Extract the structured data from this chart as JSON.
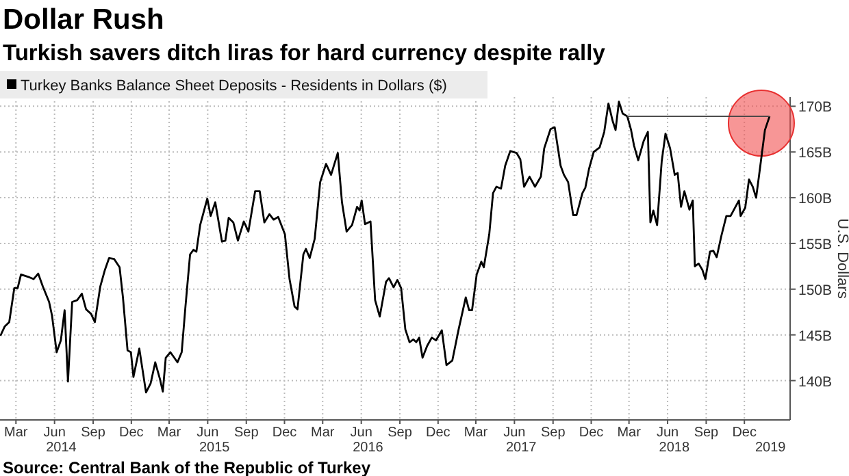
{
  "chart_data": {
    "type": "line",
    "title": "Dollar Rush",
    "subtitle": "Turkish savers ditch liras for hard currency despite rally",
    "ylabel": "U.S. Dollars",
    "annotations": [
      "Source: Central Bank of the Republic of Turkey"
    ],
    "legend": "top left",
    "grid": true,
    "marker": "none",
    "line_style": "solid",
    "xlim": [
      "2014-02-05",
      "2019-04-03"
    ],
    "xticks": [
      {
        "value": "2014-03-15",
        "label": "Mar"
      },
      {
        "value": "2014-06-15",
        "label": "Jun"
      },
      {
        "value": "2014-09-15",
        "label": "Sep"
      },
      {
        "value": "2014-12-15",
        "label": "Dec"
      },
      {
        "value": "2015-03-15",
        "label": "Mar"
      },
      {
        "value": "2015-06-15",
        "label": "Jun"
      },
      {
        "value": "2015-09-15",
        "label": "Sep"
      },
      {
        "value": "2015-12-15",
        "label": "Dec"
      },
      {
        "value": "2016-03-15",
        "label": "Mar"
      },
      {
        "value": "2016-06-15",
        "label": "Jun"
      },
      {
        "value": "2016-09-15",
        "label": "Sep"
      },
      {
        "value": "2016-12-15",
        "label": "Dec"
      },
      {
        "value": "2017-03-15",
        "label": "Mar"
      },
      {
        "value": "2017-06-15",
        "label": "Jun"
      },
      {
        "value": "2017-09-15",
        "label": "Sep"
      },
      {
        "value": "2017-12-15",
        "label": "Dec"
      },
      {
        "value": "2018-03-15",
        "label": "Mar"
      },
      {
        "value": "2018-06-15",
        "label": "Jun"
      },
      {
        "value": "2018-09-15",
        "label": "Sep"
      },
      {
        "value": "2018-12-15",
        "label": "Dec"
      }
    ],
    "x2lim": [
      "2014-02-05",
      "2019-04-03"
    ],
    "x2ticks": [
      {
        "value": "2014-07-01",
        "label": "2014"
      },
      {
        "value": "2015-07-01",
        "label": "2015"
      },
      {
        "value": "2016-07-01",
        "label": "2016"
      },
      {
        "value": "2017-07-01",
        "label": "2017"
      },
      {
        "value": "2018-07-01",
        "label": "2018"
      },
      {
        "value": "2019-02-15",
        "label": "2019"
      }
    ],
    "ylim": [
      135.7,
      171
    ],
    "yticks": [
      {
        "value": 140,
        "label": "140B"
      },
      {
        "value": 145,
        "label": "145B"
      },
      {
        "value": 150,
        "label": "150B"
      },
      {
        "value": 155,
        "label": "155B"
      },
      {
        "value": 160,
        "label": "160B"
      },
      {
        "value": 165,
        "label": "165B"
      },
      {
        "value": 170,
        "label": "170B"
      }
    ],
    "series": [
      {
        "name": "Turkey Banks Balance Sheet Deposits - Residents in Dollars ($)",
        "color": "#000000",
        "x": [
          "2014-02-06",
          "2014-02-16",
          "2014-02-27",
          "2014-03-11",
          "2014-03-19",
          "2014-03-27",
          "2014-04-16",
          "2014-04-26",
          "2014-05-07",
          "2014-05-18",
          "2014-06-02",
          "2014-06-09",
          "2014-06-20",
          "2014-06-30",
          "2014-07-09",
          "2014-07-17",
          "2014-07-27",
          "2014-08-08",
          "2014-08-19",
          "2014-08-29",
          "2014-09-10",
          "2014-09-19",
          "2014-10-02",
          "2014-10-13",
          "2014-10-23",
          "2014-11-04",
          "2014-11-17",
          "2014-11-25",
          "2014-12-06",
          "2014-12-14",
          "2014-12-20",
          "2015-01-03",
          "2015-01-19",
          "2015-01-30",
          "2015-02-10",
          "2015-02-21",
          "2015-02-28",
          "2015-03-07",
          "2015-03-18",
          "2015-04-04",
          "2015-04-14",
          "2015-04-23",
          "2015-05-04",
          "2015-05-12",
          "2015-05-19",
          "2015-05-28",
          "2015-06-14",
          "2015-06-22",
          "2015-07-03",
          "2015-07-19",
          "2015-07-27",
          "2015-08-04",
          "2015-08-15",
          "2015-08-26",
          "2015-09-09",
          "2015-09-20",
          "2015-10-06",
          "2015-10-17",
          "2015-10-28",
          "2015-11-09",
          "2015-11-19",
          "2015-11-30",
          "2015-12-16",
          "2015-12-27",
          "2016-01-08",
          "2016-01-15",
          "2016-01-29",
          "2016-02-04",
          "2016-02-13",
          "2016-02-25",
          "2016-03-09",
          "2016-03-23",
          "2016-04-04",
          "2016-04-20",
          "2016-04-30",
          "2016-05-11",
          "2016-05-24",
          "2016-06-05",
          "2016-06-11",
          "2016-06-16",
          "2016-06-24",
          "2016-07-07",
          "2016-07-18",
          "2016-07-29",
          "2016-08-13",
          "2016-08-20",
          "2016-08-31",
          "2016-09-09",
          "2016-09-18",
          "2016-09-28",
          "2016-10-08",
          "2016-10-17",
          "2016-10-24",
          "2016-10-31",
          "2016-11-08",
          "2016-11-19",
          "2016-11-30",
          "2016-12-10",
          "2016-12-24",
          "2017-01-04",
          "2017-01-18",
          "2017-02-02",
          "2017-02-19",
          "2017-02-27",
          "2017-03-06",
          "2017-03-17",
          "2017-03-28",
          "2017-04-03",
          "2017-04-16",
          "2017-04-25",
          "2017-05-03",
          "2017-05-14",
          "2017-05-24",
          "2017-06-05",
          "2017-06-20",
          "2017-06-29",
          "2017-07-08",
          "2017-07-21",
          "2017-08-03",
          "2017-08-17",
          "2017-08-25",
          "2017-09-09",
          "2017-09-19",
          "2017-10-03",
          "2017-10-11",
          "2017-10-21",
          "2017-11-02",
          "2017-11-10",
          "2017-11-24",
          "2017-12-01",
          "2017-12-10",
          "2017-12-21",
          "2018-01-04",
          "2018-01-15",
          "2018-01-25",
          "2018-02-04",
          "2018-02-11",
          "2018-02-19",
          "2018-02-28",
          "2018-03-11",
          "2018-03-20",
          "2018-03-27",
          "2018-04-06",
          "2018-04-19",
          "2018-04-29",
          "2018-05-05",
          "2018-05-12",
          "2018-05-21",
          "2018-06-01",
          "2018-06-10",
          "2018-06-21",
          "2018-07-02",
          "2018-07-09",
          "2018-07-17",
          "2018-07-25",
          "2018-08-06",
          "2018-08-14",
          "2018-08-19",
          "2018-08-28",
          "2018-09-06",
          "2018-09-13",
          "2018-09-24",
          "2018-10-02",
          "2018-10-10",
          "2018-10-21",
          "2018-11-02",
          "2018-11-12",
          "2018-12-02",
          "2018-12-06",
          "2018-12-17",
          "2018-12-26",
          "2019-01-04",
          "2019-01-12",
          "2019-01-22",
          "2019-02-02",
          "2019-02-13"
        ],
        "values": [
          144.9,
          145.9,
          146.4,
          150.1,
          150.1,
          151.6,
          151.3,
          151.1,
          151.7,
          150.3,
          148.6,
          147.1,
          143.1,
          144.4,
          147.7,
          139.9,
          148.6,
          148.8,
          149.5,
          147.8,
          147.3,
          146.4,
          150.3,
          152.1,
          153.4,
          153.3,
          152.4,
          149.1,
          143.3,
          143.1,
          140.4,
          143.5,
          138.7,
          139.7,
          142.0,
          140.2,
          138.8,
          142.5,
          143.1,
          142.0,
          143.1,
          148.1,
          153.8,
          154.3,
          154.1,
          157.0,
          159.9,
          158.0,
          159.5,
          155.2,
          155.3,
          157.8,
          157.3,
          155.3,
          157.4,
          156.3,
          160.7,
          160.7,
          157.3,
          158.2,
          157.6,
          157.9,
          156.0,
          151.1,
          148.1,
          147.8,
          153.8,
          154.4,
          153.4,
          155.5,
          161.7,
          163.7,
          162.5,
          164.9,
          159.5,
          156.3,
          157.0,
          159.0,
          158.6,
          159.7,
          157.1,
          157.4,
          148.8,
          147.0,
          150.8,
          151.2,
          150.2,
          151.0,
          150.1,
          145.6,
          144.2,
          144.5,
          144.2,
          144.7,
          142.5,
          143.8,
          144.7,
          144.4,
          145.5,
          141.7,
          142.2,
          145.6,
          149.1,
          147.7,
          147.7,
          151.6,
          153.0,
          152.4,
          156.0,
          160.5,
          161.2,
          161.0,
          163.5,
          165.1,
          164.9,
          164.2,
          161.2,
          162.3,
          161.2,
          162.3,
          165.4,
          167.5,
          167.7,
          163.5,
          162.5,
          161.7,
          158.1,
          158.1,
          160.5,
          161.1,
          163.2,
          165.0,
          165.5,
          167.2,
          170.3,
          168.4,
          167.4,
          170.5,
          169.2,
          168.9,
          167.4,
          165.7,
          164.1,
          166.2,
          167.2,
          157.3,
          158.6,
          157.0,
          164.0,
          167.0,
          165.4,
          162.5,
          162.7,
          159.0,
          160.7,
          158.7,
          159.7,
          152.5,
          152.8,
          152.1,
          151.1,
          154.1,
          154.2,
          153.5,
          155.8,
          158.0,
          158.0,
          159.7,
          158.0,
          158.9,
          162.0,
          161.2,
          160.0,
          163.5,
          167.4,
          168.9
        ]
      }
    ]
  }
}
